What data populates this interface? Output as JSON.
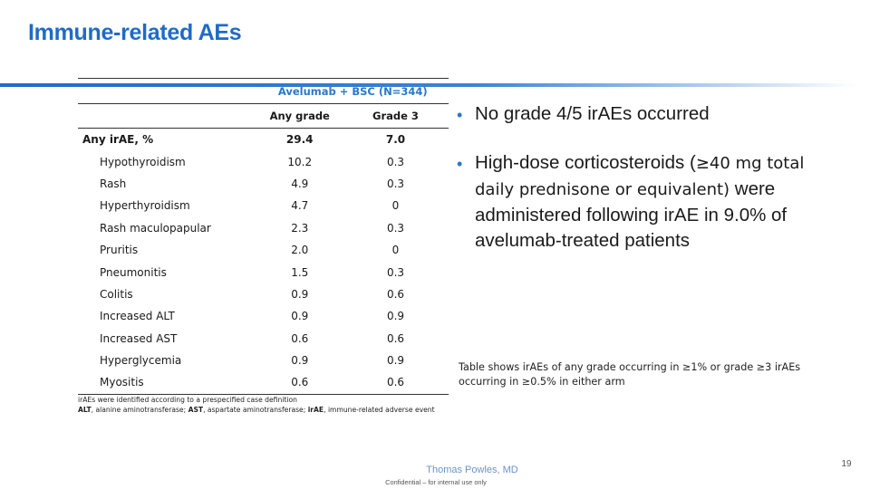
{
  "slide": {
    "title": "Immune-related AEs",
    "presenter": "Thomas Powles, MD",
    "confidential": "Confidential – for internal use only",
    "page_number": "19"
  },
  "table": {
    "arm_header": "Avelumab + BSC (N=344)",
    "col_headers": {
      "label": "",
      "any_grade": "Any grade",
      "grade3": "Grade 3"
    },
    "rows": [
      {
        "label": "Any irAE, %",
        "any_grade": "29.4",
        "grade3": "7.0"
      },
      {
        "label": "Hypothyroidism",
        "any_grade": "10.2",
        "grade3": "0.3"
      },
      {
        "label": "Rash",
        "any_grade": "4.9",
        "grade3": "0.3"
      },
      {
        "label": "Hyperthyroidism",
        "any_grade": "4.7",
        "grade3": "0"
      },
      {
        "label": "Rash maculopapular",
        "any_grade": "2.3",
        "grade3": "0.3"
      },
      {
        "label": "Pruritis",
        "any_grade": "2.0",
        "grade3": "0"
      },
      {
        "label": "Pneumonitis",
        "any_grade": "1.5",
        "grade3": "0.3"
      },
      {
        "label": "Colitis",
        "any_grade": "0.9",
        "grade3": "0.6"
      },
      {
        "label": "Increased ALT",
        "any_grade": "0.9",
        "grade3": "0.9"
      },
      {
        "label": "Increased AST",
        "any_grade": "0.6",
        "grade3": "0.6"
      },
      {
        "label": "Hyperglycemia",
        "any_grade": "0.9",
        "grade3": "0.9"
      },
      {
        "label": "Myositis",
        "any_grade": "0.6",
        "grade3": "0.6"
      }
    ],
    "footnote_line1": "irAEs were identified according to a prespecified case definition",
    "footnote_abbr": [
      {
        "term": "ALT",
        "def": ", alanine aminotransferase; "
      },
      {
        "term": "AST",
        "def": ", aspartate aminotransferase; "
      },
      {
        "term": "irAE",
        "def": ", immune-related adverse event"
      }
    ]
  },
  "bullets": {
    "b1": "No grade 4/5 irAEs occurred",
    "b2_pre": "High-dose corticosteroids (",
    "b2_alt": "≥40 mg total daily prednisone or equivalent)",
    "b2_post": " were administered following irAE in 9.0% of avelumab-treated patients"
  },
  "note": "Table shows irAEs of any grade occurring in ≥1% or grade ≥3 irAEs occurring in ≥0.5% in either arm",
  "colors": {
    "title_blue": "#1f6bc6",
    "accent_blue": "#2a78c8",
    "presenter_blue": "#6b93c9"
  }
}
